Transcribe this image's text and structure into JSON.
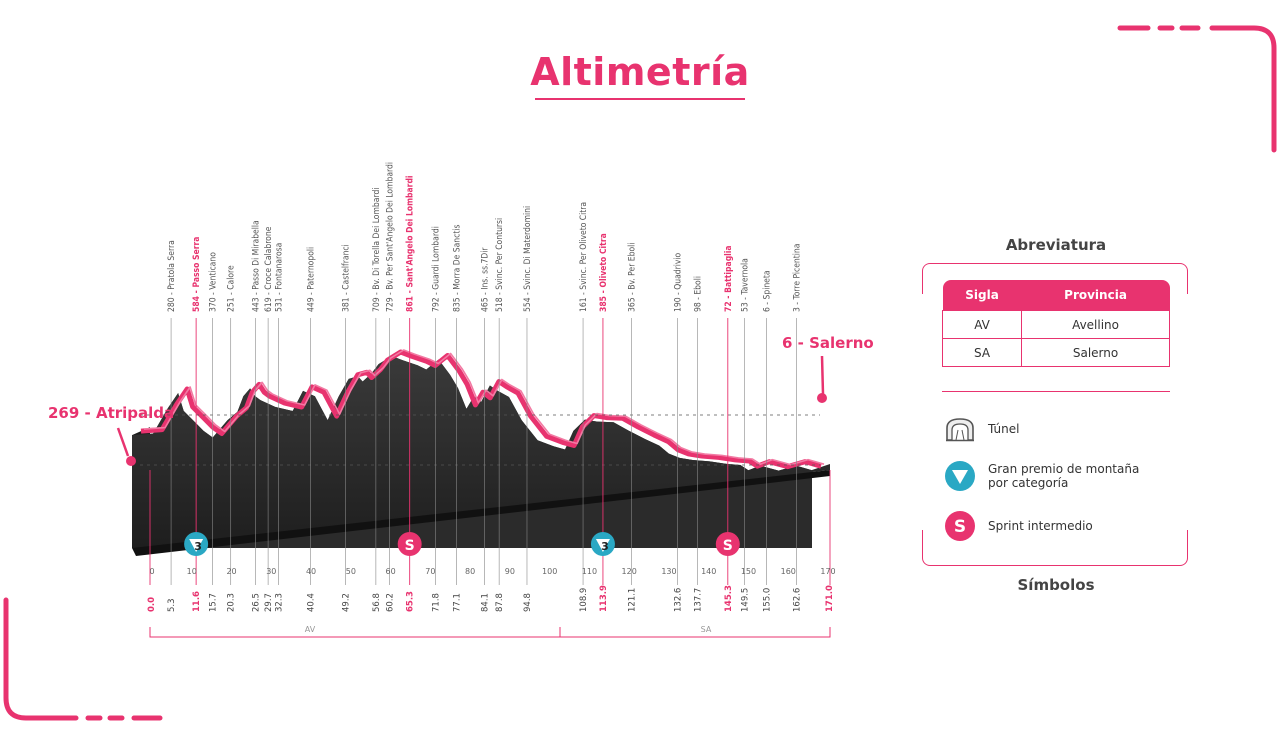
{
  "page": {
    "title": "Altimetría"
  },
  "colors": {
    "accent": "#e8336f",
    "profile": "#2b2b2b",
    "label_gray": "#555555",
    "blue_badge": "#2aa8c4"
  },
  "profile": {
    "start_label": "269 - Atripalda",
    "end_label": "6 - Salerno",
    "waypoints": [
      {
        "label": "280 - Pratola Serra",
        "km": "5.3",
        "highlight": false,
        "sym": ""
      },
      {
        "label": "584 - Passo Serra",
        "km": "11.6",
        "highlight": true,
        "sym": "gpm3"
      },
      {
        "label": "370 - Venticano",
        "km": "15.7",
        "highlight": false,
        "sym": ""
      },
      {
        "label": "251 - Calore",
        "km": "20.3",
        "highlight": false,
        "sym": ""
      },
      {
        "label": "443 - Passo Di Mirabella",
        "km": "26.5",
        "highlight": false,
        "sym": ""
      },
      {
        "label": "619 - Croce Calabrone",
        "km": "29.7",
        "highlight": false,
        "sym": ""
      },
      {
        "label": "531 - Fontanarosa",
        "km": "32.3",
        "highlight": false,
        "sym": ""
      },
      {
        "label": "449 - Paternopoli",
        "km": "40.4",
        "highlight": false,
        "sym": ""
      },
      {
        "label": "381 - Castelfranci",
        "km": "49.2",
        "highlight": false,
        "sym": ""
      },
      {
        "label": "709 - Bv. Di Torella Dei Lombardi",
        "km": "56.8",
        "highlight": false,
        "sym": ""
      },
      {
        "label": "729 - Bv. Per Sant'Angelo Dei Lombardi",
        "km": "60.2",
        "highlight": false,
        "sym": ""
      },
      {
        "label": "861 - Sant'Angelo Dei Lombardi",
        "km": "65.3",
        "highlight": true,
        "sym": "sprint"
      },
      {
        "label": "792 - Guardi Lombardi",
        "km": "71.8",
        "highlight": false,
        "sym": ""
      },
      {
        "label": "835 - Morra De Sanctis",
        "km": "77.1",
        "highlight": false,
        "sym": ""
      },
      {
        "label": "465 - Ins. ss.7Dir",
        "km": "84.1",
        "highlight": false,
        "sym": ""
      },
      {
        "label": "518 - Svinc. Per Contursi",
        "km": "87.8",
        "highlight": false,
        "sym": ""
      },
      {
        "label": "554 - Svinc. Di Materdomini",
        "km": "94.8",
        "highlight": false,
        "sym": ""
      },
      {
        "label": "161 - Svinc. Per Oliveto Citra",
        "km": "108.9",
        "highlight": false,
        "sym": ""
      },
      {
        "label": "385 - Oliveto Citra",
        "km": "113.9",
        "highlight": true,
        "sym": "gpm3"
      },
      {
        "label": "365 - Bv. Per Eboli",
        "km": "121.1",
        "highlight": false,
        "sym": ""
      },
      {
        "label": "190 - Quadrivio",
        "km": "132.6",
        "highlight": false,
        "sym": ""
      },
      {
        "label": "98 - Eboli",
        "km": "137.7",
        "highlight": false,
        "sym": ""
      },
      {
        "label": "72 - Battipaglia",
        "km": "145.3",
        "highlight": true,
        "sym": "sprint"
      },
      {
        "label": "53 - Tavernola",
        "km": "149.5",
        "highlight": false,
        "sym": ""
      },
      {
        "label": "6 - Spineta",
        "km": "155.0",
        "highlight": false,
        "sym": ""
      },
      {
        "label": "3 - Torre Picentina",
        "km": "162.6",
        "highlight": false,
        "sym": ""
      }
    ],
    "start_km": "0.0",
    "end_km": "171.0",
    "km_ticks": [
      "0",
      "10",
      "20",
      "30",
      "40",
      "50",
      "60",
      "70",
      "80",
      "90",
      "100",
      "110",
      "120",
      "130",
      "140",
      "150",
      "160",
      "170"
    ],
    "provinces": [
      "AV",
      "SA"
    ],
    "gpm_badge": "3",
    "sprint_badge": "S"
  },
  "legend": {
    "abbr_title": "Abreviatura",
    "table_headers": [
      "Sigla",
      "Provincia"
    ],
    "rows": [
      [
        "AV",
        "Avellino"
      ],
      [
        "SA",
        "Salerno"
      ]
    ],
    "symbols_title": "Símbolos",
    "symbols": [
      {
        "icon": "tunnel-icon",
        "text": "Túnel"
      },
      {
        "icon": "gpm-triangle-icon",
        "text": "Gran premio de montaña por categoría"
      },
      {
        "icon": "sprint-icon",
        "text": "Sprint intermedio"
      }
    ]
  }
}
